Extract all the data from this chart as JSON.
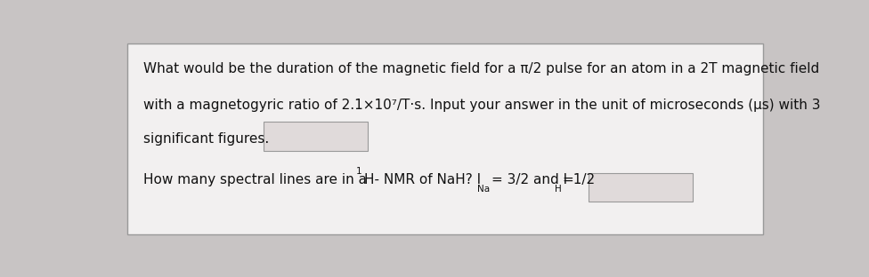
{
  "bg_color": "#c8c4c4",
  "card_color": "#f2f0f0",
  "card_edge_color": "#999999",
  "text_color": "#111111",
  "font_size": 11.0,
  "line1": "What would be the duration of the magnetic field for a π/2 pulse for an atom in a 2T magnetic field",
  "line2": "with a magnetogyric ratio of 2.1×10⁷/T·s. Input your answer in the unit of microseconds (μs) with 3",
  "line3": "significant figures.",
  "line4_pre": "How many spectral lines are in a ",
  "line4_sup": "1",
  "line4_mid": "H- NMR of NaH? I",
  "line4_sub1": "Na",
  "line4_after_sub1": "= 3/2 and I",
  "line4_sub2": "H",
  "line4_end": "=1/2",
  "box1_facecolor": "#e0dada",
  "box2_facecolor": "#e0dada",
  "box_edgecolor": "#999999"
}
